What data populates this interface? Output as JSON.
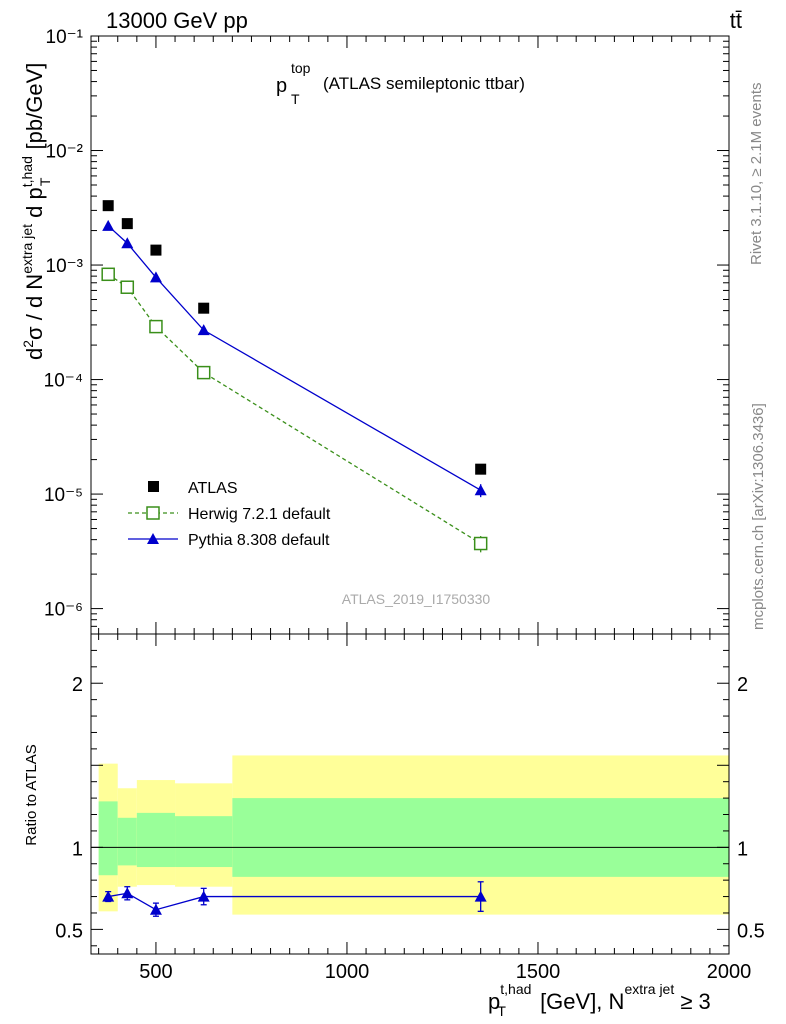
{
  "header": {
    "energy_label": "13000 GeV pp",
    "process_label": "tt̄",
    "plot_title_main": "p",
    "plot_title_sup": "top",
    "plot_title_sub": "T",
    "plot_title_rest": "(ATLAS semileptonic ttbar)"
  },
  "side_labels": {
    "rivet": "Rivet 3.1.10, ≥ 2.1M events",
    "mcplots": "mcplots.cern.ch [arXiv:1306.3436]"
  },
  "watermark": "ATLAS_2019_I1750330",
  "colors": {
    "atlas": "#000000",
    "herwig": "#3a8f1a",
    "pythia": "#0000cc",
    "band_inner": "#99ff99",
    "band_outer": "#ffff99"
  },
  "chart_data": [
    {
      "type": "scatter",
      "yscale": "log",
      "xlim": [
        330,
        2000
      ],
      "ylim": [
        6e-07,
        0.1
      ],
      "ylabel": "d²σ / d N^{extra jet} d p_T^{t,had} [pb/GeV]",
      "y_tick_labels": [
        "10⁻¹",
        "10⁻²",
        "10⁻³",
        "10⁻⁴",
        "10⁻⁵",
        "10⁻⁶"
      ],
      "y_tick_values": [
        0.1,
        0.01,
        0.001,
        0.0001,
        1e-05,
        1e-06
      ],
      "legend_position": "bottom-left",
      "series": [
        {
          "name": "ATLAS",
          "marker": "filled-square",
          "x": [
            375,
            425,
            500,
            625,
            1350
          ],
          "y": [
            0.0033,
            0.0023,
            0.00135,
            0.00042,
            1.65e-05
          ]
        },
        {
          "name": "Herwig 7.2.1 default",
          "marker": "open-square",
          "line": "dashed",
          "x": [
            375,
            425,
            500,
            625,
            1350
          ],
          "y": [
            0.00083,
            0.00064,
            0.00029,
            0.000115,
            3.7e-06
          ],
          "yerr": [
            3e-05,
            2e-05,
            1e-05,
            4e-06,
            6e-07
          ]
        },
        {
          "name": "Pythia 8.308 default",
          "marker": "filled-triangle",
          "line": "solid",
          "x": [
            375,
            425,
            500,
            625,
            1350
          ],
          "y": [
            0.0022,
            0.00155,
            0.00078,
            0.00027,
            1.08e-05
          ],
          "yerr": [
            5e-05,
            4e-05,
            2e-05,
            8e-06,
            1.4e-06
          ]
        }
      ]
    },
    {
      "type": "line",
      "xlim": [
        330,
        2000
      ],
      "ylim": [
        0.35,
        2.3
      ],
      "ylabel": "Ratio to ATLAS",
      "xlabel": "p_T^{t,had} [GeV], N^{extra jet} ≥ 3",
      "x_tick_labels": [
        "500",
        "1000",
        "1500",
        "2000"
      ],
      "x_tick_values": [
        500,
        1000,
        1500,
        2000
      ],
      "y_tick_labels": [
        "0.5",
        "1",
        "2"
      ],
      "y_tick_values": [
        0.5,
        1,
        2
      ],
      "bins": [
        {
          "lo": 350,
          "hi": 400,
          "inner": [
            0.83,
            1.28
          ],
          "outer": [
            0.61,
            1.51
          ]
        },
        {
          "lo": 400,
          "hi": 450,
          "inner": [
            0.89,
            1.18
          ],
          "outer": [
            0.76,
            1.36
          ]
        },
        {
          "lo": 450,
          "hi": 550,
          "inner": [
            0.88,
            1.21
          ],
          "outer": [
            0.77,
            1.41
          ]
        },
        {
          "lo": 550,
          "hi": 700,
          "inner": [
            0.88,
            1.19
          ],
          "outer": [
            0.76,
            1.39
          ]
        },
        {
          "lo": 700,
          "hi": 2000,
          "inner": [
            0.82,
            1.3
          ],
          "outer": [
            0.59,
            1.56
          ]
        }
      ],
      "series": [
        {
          "name": "Pythia 8.308 default",
          "x": [
            375,
            425,
            500,
            625,
            1350
          ],
          "y": [
            0.7,
            0.72,
            0.62,
            0.7,
            0.7
          ],
          "yerr": [
            0.03,
            0.04,
            0.04,
            0.05,
            0.09
          ]
        }
      ]
    }
  ]
}
